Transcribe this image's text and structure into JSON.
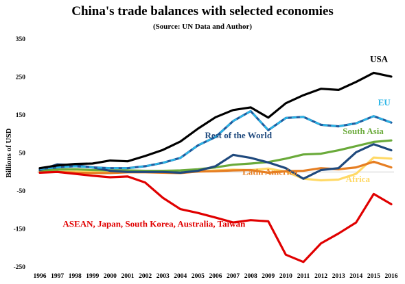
{
  "chart_data": {
    "type": "line",
    "title": "China's trade balances with selected economies",
    "subtitle": "(Source: UN Data and Author)",
    "ylabel": "Billions of USD",
    "xlabel": "",
    "ylim": [
      -250,
      350
    ],
    "yticks": [
      350,
      250,
      150,
      50,
      -50,
      -150,
      -250
    ],
    "grid": false,
    "x": [
      1996,
      1997,
      1998,
      1999,
      2000,
      2001,
      2002,
      2003,
      2004,
      2005,
      2006,
      2007,
      2008,
      2009,
      2010,
      2011,
      2012,
      2013,
      2014,
      2015,
      2016
    ],
    "series": [
      {
        "name": "USA",
        "color": "#000000",
        "dashed": false,
        "values": [
          10,
          17,
          21,
          22,
          30,
          28,
          42,
          58,
          80,
          114,
          144,
          163,
          170,
          143,
          181,
          202,
          219,
          216,
          237,
          261,
          251
        ]
      },
      {
        "name": "EU",
        "color": "#1f5c9e",
        "dashed": true,
        "dash_color": "#2bb5e6",
        "values": [
          8,
          12,
          15,
          12,
          10,
          10,
          15,
          24,
          37,
          70,
          92,
          134,
          160,
          110,
          142,
          145,
          124,
          120,
          128,
          147,
          130
        ]
      },
      {
        "name": "South Asia",
        "color": "#6aaa3a",
        "dashed": false,
        "values": [
          4,
          6,
          7,
          5,
          4,
          4,
          3,
          3,
          4,
          7,
          12,
          19,
          22,
          26,
          35,
          46,
          48,
          57,
          68,
          79,
          83
        ]
      },
      {
        "name": "Rest of the World",
        "color": "#1f497d",
        "dashed": false,
        "values": [
          5,
          20,
          18,
          12,
          3,
          0,
          0,
          0,
          -2,
          3,
          15,
          45,
          37,
          25,
          10,
          -18,
          5,
          10,
          52,
          73,
          57
        ]
      },
      {
        "name": "Latin America",
        "color": "#e67e22",
        "dashed": false,
        "values": [
          0,
          0,
          -2,
          -3,
          -3,
          -1,
          -1,
          -2,
          -3,
          1,
          2,
          4,
          5,
          -2,
          2,
          3,
          10,
          7,
          12,
          27,
          12
        ]
      },
      {
        "name": "Africa",
        "color": "#ffd966",
        "dashed": false,
        "values": [
          1,
          0,
          1,
          0,
          -2,
          0,
          2,
          0,
          -2,
          1,
          4,
          6,
          5,
          9,
          1,
          -18,
          -22,
          -20,
          -5,
          38,
          35
        ]
      },
      {
        "name": "ASEAN, Japan, South Korea, Australia, Taiwan",
        "color": "#e00000",
        "dashed": false,
        "values": [
          -2,
          0,
          -5,
          -10,
          -14,
          -12,
          -28,
          -68,
          -98,
          -108,
          -120,
          -133,
          -127,
          -130,
          -218,
          -237,
          -188,
          -162,
          -133,
          -58,
          -85
        ]
      }
    ]
  }
}
